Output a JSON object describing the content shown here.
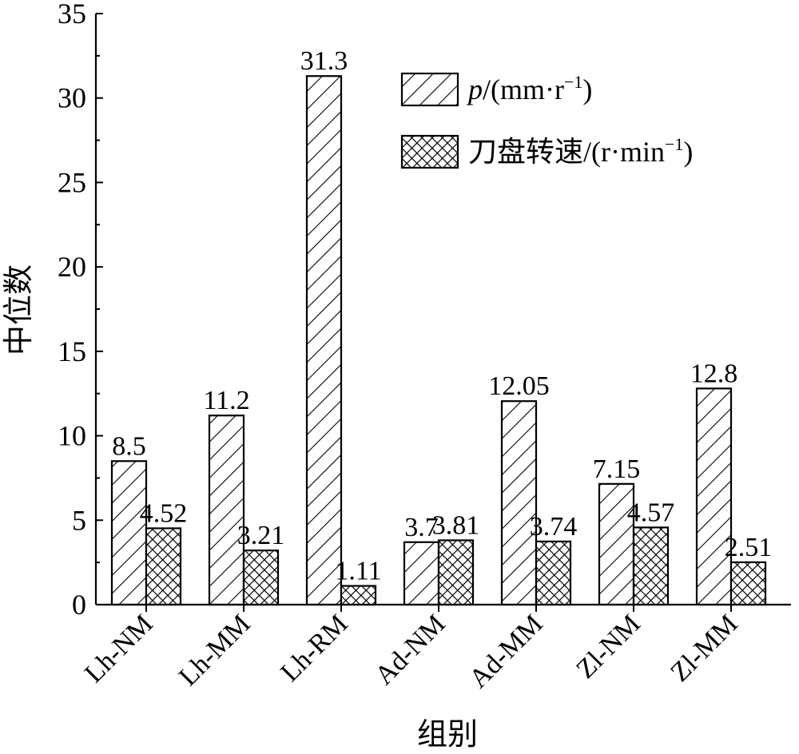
{
  "chart_data": {
    "type": "bar",
    "title": "",
    "xlabel": "组别",
    "ylabel": "中位数",
    "ylim": [
      0,
      35
    ],
    "yticks": [
      0,
      5,
      10,
      15,
      20,
      25,
      30,
      35
    ],
    "grid": false,
    "legend_position": "top-right",
    "categories": [
      "Lh-NM",
      "Lh-MM",
      "Lh-RM",
      "Ad-NM",
      "Ad-MM",
      "Zl-NM",
      "Zl-MM"
    ],
    "series": [
      {
        "name": "p/(mm·r⁻¹)",
        "name_parts": [
          "p",
          "/(mm·r",
          "−1",
          ")"
        ],
        "pattern": "diagonal-hatch",
        "values": [
          8.5,
          11.2,
          31.3,
          3.7,
          12.05,
          7.15,
          12.8
        ],
        "labels": [
          "8.5",
          "11.2",
          "31.3",
          "3.7",
          "12.05",
          "7.15",
          "12.8"
        ]
      },
      {
        "name": "刀盘转速/(r·min⁻¹)",
        "name_parts": [
          "刀盘转速/(r·min",
          "−1",
          ")"
        ],
        "pattern": "cross-hatch",
        "values": [
          4.52,
          3.21,
          1.11,
          3.81,
          3.74,
          4.57,
          2.51
        ],
        "labels": [
          "4.52",
          "3.21",
          "1.11",
          "3.81",
          "3.74",
          "4.57",
          "2.51"
        ]
      }
    ]
  }
}
